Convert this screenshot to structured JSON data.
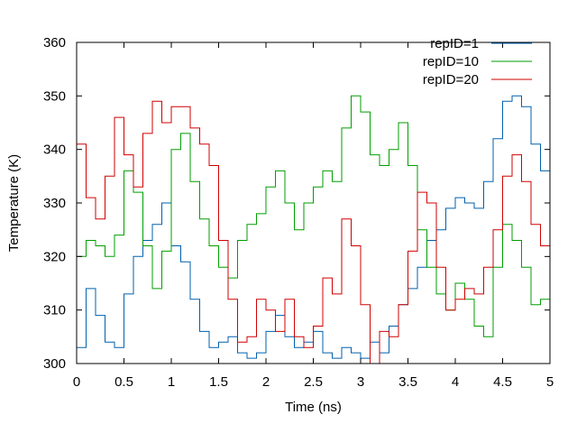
{
  "chart_data": {
    "type": "line",
    "title": "",
    "xlabel": "Time (ns)",
    "ylabel": "Temperature (K)",
    "xlim": [
      0,
      5
    ],
    "ylim": [
      300,
      360
    ],
    "xticks": [
      0,
      0.5,
      1,
      1.5,
      2,
      2.5,
      3,
      3.5,
      4,
      4.5,
      5
    ],
    "xtick_labels": [
      "0",
      "0.5",
      "1",
      "1.5",
      "2",
      "2.5",
      "3",
      "3.5",
      "4",
      "4.5",
      "5"
    ],
    "yticks": [
      300,
      310,
      320,
      330,
      340,
      350,
      360
    ],
    "ytick_labels": [
      "300",
      "310",
      "320",
      "330",
      "340",
      "350",
      "360"
    ],
    "grid": false,
    "legend": "top-right",
    "step_plot": true,
    "series": [
      {
        "name": "repID=1",
        "color": "#0060ad",
        "x": [
          0,
          0.1,
          0.2,
          0.3,
          0.4,
          0.5,
          0.6,
          0.7,
          0.8,
          0.9,
          1.0,
          1.1,
          1.2,
          1.3,
          1.4,
          1.5,
          1.6,
          1.7,
          1.8,
          1.9,
          2.0,
          2.1,
          2.2,
          2.3,
          2.4,
          2.5,
          2.6,
          2.7,
          2.8,
          2.9,
          3.0,
          3.1,
          3.2,
          3.3,
          3.4,
          3.5,
          3.6,
          3.7,
          3.8,
          3.9,
          4.0,
          4.1,
          4.2,
          4.3,
          4.4,
          4.5,
          4.6,
          4.7,
          4.8,
          4.9,
          5.0
        ],
        "values": [
          303,
          314,
          309,
          304,
          303,
          313,
          320,
          323,
          326,
          330,
          322,
          319,
          312,
          306,
          303,
          304,
          305,
          302,
          301,
          302,
          306,
          309,
          305,
          303,
          304,
          306,
          302,
          301,
          303,
          302,
          301,
          304,
          302,
          307,
          311,
          314,
          318,
          323,
          325,
          329,
          331,
          330,
          329,
          334,
          342,
          349,
          350,
          348,
          341,
          336,
          344
        ]
      },
      {
        "name": "repID=10",
        "color": "#009e00",
        "x": [
          0,
          0.1,
          0.2,
          0.3,
          0.4,
          0.5,
          0.6,
          0.7,
          0.8,
          0.9,
          1.0,
          1.1,
          1.2,
          1.3,
          1.4,
          1.5,
          1.6,
          1.7,
          1.8,
          1.9,
          2.0,
          2.1,
          2.2,
          2.3,
          2.4,
          2.5,
          2.6,
          2.7,
          2.8,
          2.9,
          3.0,
          3.1,
          3.2,
          3.3,
          3.4,
          3.5,
          3.6,
          3.7,
          3.8,
          3.9,
          4.0,
          4.1,
          4.2,
          4.3,
          4.4,
          4.5,
          4.6,
          4.7,
          4.8,
          4.9,
          5.0
        ],
        "values": [
          320,
          323,
          322,
          320,
          324,
          336,
          332,
          322,
          314,
          321,
          340,
          343,
          334,
          327,
          322,
          318,
          316,
          323,
          326,
          328,
          333,
          336,
          330,
          325,
          330,
          333,
          336,
          334,
          344,
          350,
          347,
          339,
          337,
          340,
          345,
          337,
          325,
          318,
          313,
          310,
          315,
          312,
          307,
          305,
          318,
          326,
          323,
          318,
          311,
          312,
          314
        ]
      },
      {
        "name": "repID=20",
        "color": "#d00000",
        "x": [
          0,
          0.1,
          0.2,
          0.3,
          0.4,
          0.5,
          0.6,
          0.7,
          0.8,
          0.9,
          1.0,
          1.1,
          1.2,
          1.3,
          1.4,
          1.5,
          1.6,
          1.7,
          1.8,
          1.9,
          2.0,
          2.1,
          2.2,
          2.3,
          2.4,
          2.5,
          2.6,
          2.7,
          2.8,
          2.9,
          3.0,
          3.1,
          3.2,
          3.3,
          3.4,
          3.5,
          3.6,
          3.7,
          3.8,
          3.9,
          4.0,
          4.1,
          4.2,
          4.3,
          4.4,
          4.5,
          4.6,
          4.7,
          4.8,
          4.9,
          5.0
        ],
        "values": [
          341,
          331,
          327,
          335,
          346,
          339,
          333,
          343,
          349,
          345,
          348,
          348,
          344,
          341,
          337,
          323,
          312,
          304,
          305,
          312,
          310,
          306,
          312,
          305,
          303,
          307,
          316,
          313,
          327,
          322,
          311,
          300,
          306,
          305,
          311,
          321,
          332,
          330,
          318,
          310,
          312,
          314,
          313,
          318,
          325,
          335,
          339,
          334,
          326,
          322,
          324
        ]
      }
    ]
  }
}
